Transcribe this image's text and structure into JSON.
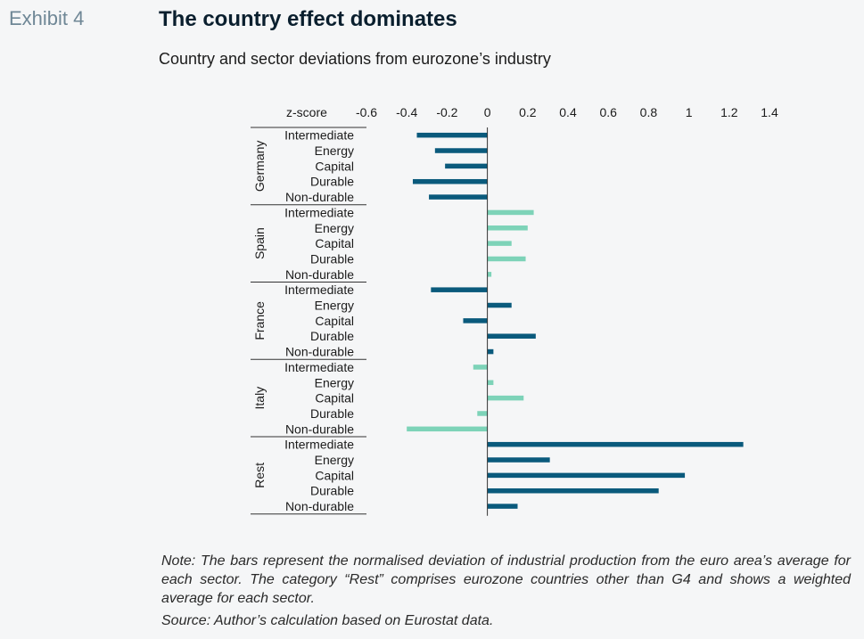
{
  "header": {
    "exhibit": "Exhibit 4",
    "title": "The country effect dominates",
    "subtitle": "Country and sector deviations from eurozone’s industry"
  },
  "footer": {
    "note": "Note: The bars represent the normalised deviation of industrial production from the euro area’s average for each sector. The category “Rest” comprises eurozone countries other than G4 and shows a weighted average for each sector.",
    "source": "Source: Author’s calculation based on Eurostat data."
  },
  "colors": {
    "dark": "#0a5a7c",
    "light": "#7dd3b8",
    "axis": "#333333"
  },
  "chart_data": {
    "type": "bar",
    "orientation": "horizontal",
    "axis_label": "z-score",
    "xlim": [
      -0.6,
      1.4
    ],
    "ticks": [
      -0.6,
      -0.4,
      -0.2,
      0,
      0.2,
      0.4,
      0.6,
      0.8,
      1,
      1.2,
      1.4
    ],
    "tick_labels": [
      "-0.6",
      "-0.4",
      "-0.2",
      "0",
      "0.2",
      "0.4",
      "0.6",
      "0.8",
      "1",
      "1.2",
      "1.4"
    ],
    "grid": false,
    "groups": [
      {
        "name": "Germany",
        "color": "dark",
        "categories": [
          "Intermediate",
          "Energy",
          "Capital",
          "Durable",
          "Non-durable"
        ],
        "values": [
          -0.35,
          -0.26,
          -0.21,
          -0.37,
          -0.29
        ]
      },
      {
        "name": "Spain",
        "color": "light",
        "categories": [
          "Intermediate",
          "Energy",
          "Capital",
          "Durable",
          "Non-durable"
        ],
        "values": [
          0.23,
          0.2,
          0.12,
          0.19,
          0.02
        ]
      },
      {
        "name": "France",
        "color": "dark",
        "categories": [
          "Intermediate",
          "Energy",
          "Capital",
          "Durable",
          "Non-durable"
        ],
        "values": [
          -0.28,
          0.12,
          -0.12,
          0.24,
          0.03
        ]
      },
      {
        "name": "Italy",
        "color": "light",
        "categories": [
          "Intermediate",
          "Energy",
          "Capital",
          "Durable",
          "Non-durable"
        ],
        "values": [
          -0.07,
          0.03,
          0.18,
          -0.05,
          -0.4
        ]
      },
      {
        "name": "Rest",
        "color": "dark",
        "categories": [
          "Intermediate",
          "Energy",
          "Capital",
          "Durable",
          "Non-durable"
        ],
        "values": [
          1.27,
          0.31,
          0.98,
          0.85,
          0.15
        ]
      }
    ]
  }
}
